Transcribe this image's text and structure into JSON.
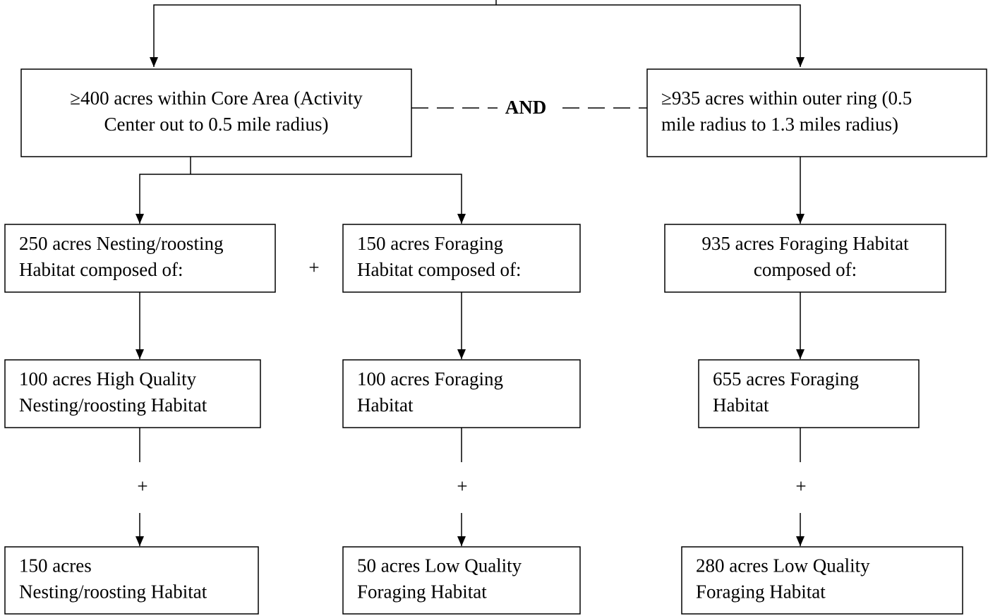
{
  "nodes": [
    {
      "lines": [
        "≥400 acres within Core Area (Activity",
        "Center out to 0.5 mile radius)"
      ]
    },
    {
      "lines": [
        "≥935 acres within outer ring (0.5",
        "mile radius to 1.3 miles radius)"
      ]
    },
    {
      "lines": [
        "250 acres Nesting/roosting",
        "Habitat composed of:"
      ]
    },
    {
      "lines": [
        "150 acres Foraging",
        "Habitat composed of:"
      ]
    },
    {
      "lines": [
        "935 acres  Foraging Habitat",
        "composed of:"
      ]
    },
    {
      "lines": [
        "100 acres High Quality",
        "Nesting/roosting Habitat"
      ]
    },
    {
      "lines": [
        "100 acres Foraging",
        "Habitat"
      ]
    },
    {
      "lines": [
        "655 acres Foraging",
        "Habitat"
      ]
    },
    {
      "lines": [
        "150 acres",
        "Nesting/roosting Habitat"
      ]
    },
    {
      "lines": [
        "50 acres Low Quality",
        "Foraging Habitat"
      ]
    },
    {
      "lines": [
        "280 acres Low Quality",
        "Foraging Habitat"
      ]
    }
  ],
  "connectors": {
    "and": "AND",
    "plus_top": "+",
    "plus_left": "+",
    "plus_middle": "+",
    "plus_right": "+"
  }
}
